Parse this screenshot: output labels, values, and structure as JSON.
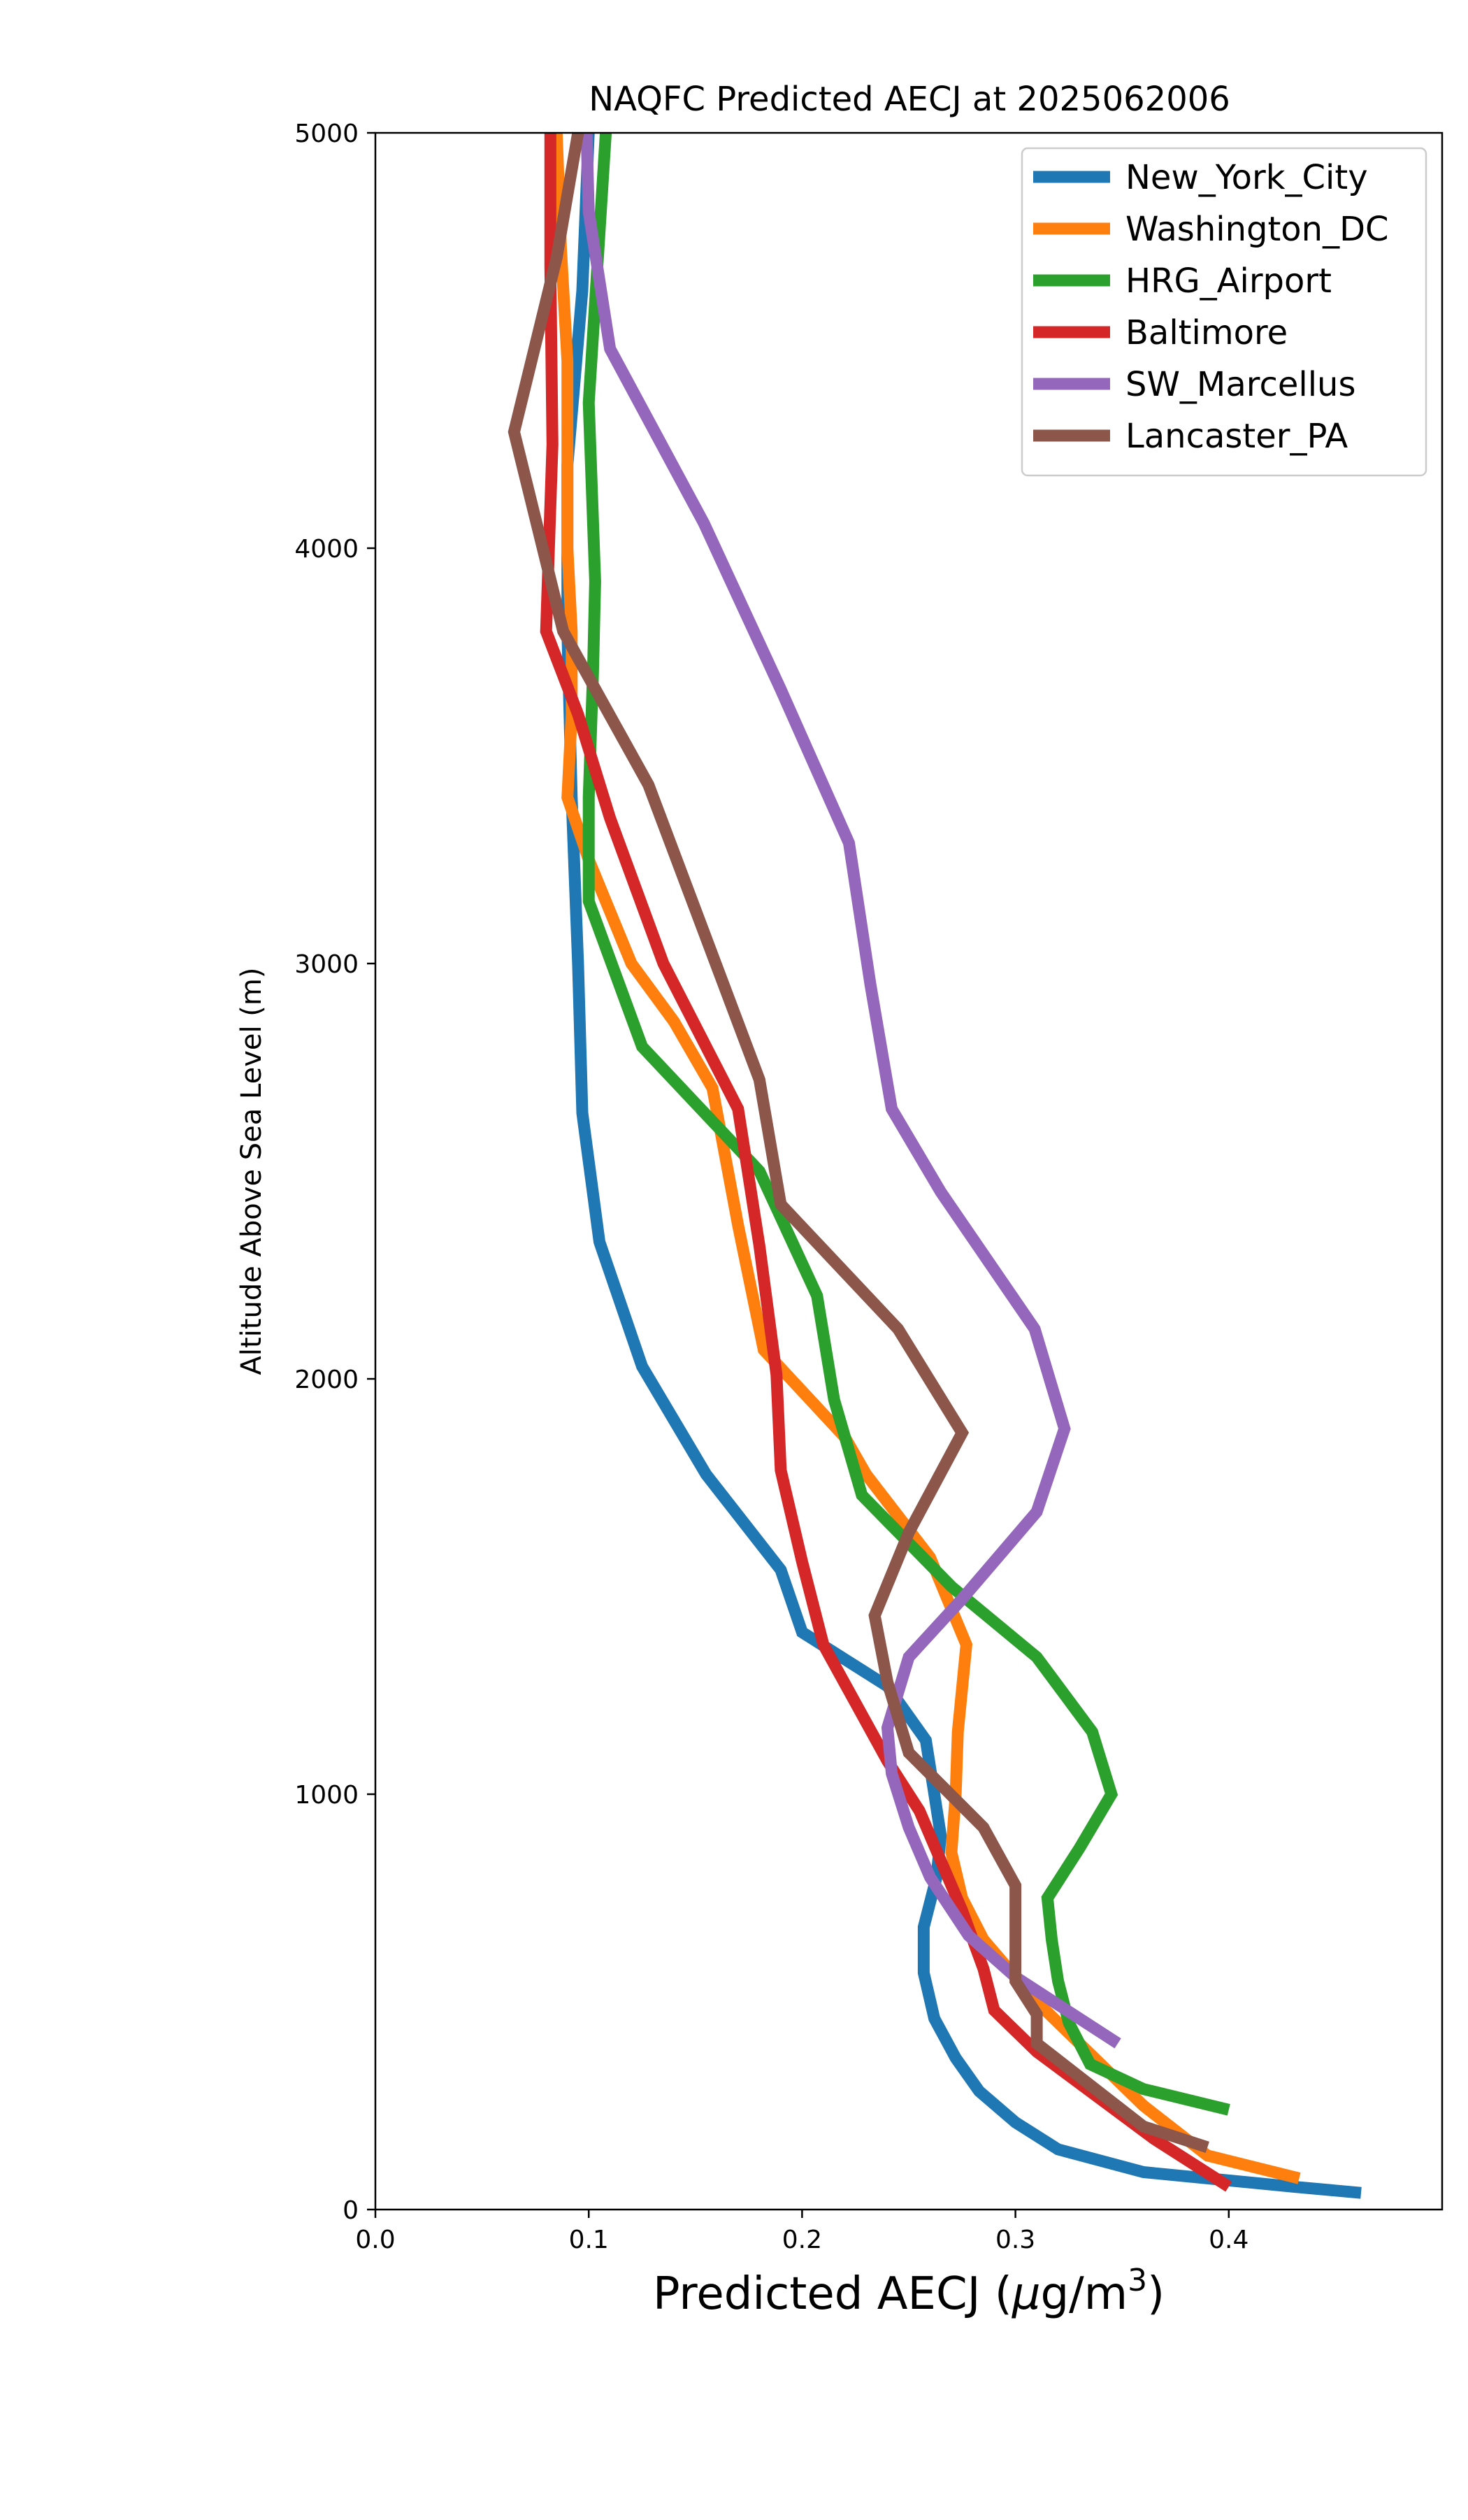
{
  "chart_data": {
    "type": "line",
    "title": "NAQFC Predicted AECJ at 2025062006",
    "xlabel": "Predicted AECJ (μg/m³)",
    "xlabel_main": "Predicted AECJ (",
    "xlabel_mu": "μ",
    "xlabel_unit": "g/m",
    "xlabel_sup": "3",
    "xlabel_close": ")",
    "ylabel": "Altitude Above Sea Level (m)",
    "xlim": [
      0.0,
      0.5
    ],
    "ylim": [
      0,
      5000
    ],
    "x_ticks": [
      0.0,
      0.1,
      0.2,
      0.3,
      0.4
    ],
    "x_tick_labels": [
      "0.0",
      "0.1",
      "0.2",
      "0.3",
      "0.4"
    ],
    "y_ticks": [
      0,
      1000,
      2000,
      3000,
      4000,
      5000
    ],
    "y_tick_labels": [
      "0",
      "1000",
      "2000",
      "3000",
      "4000",
      "5000"
    ],
    "grid": false,
    "legend_position": "top-right",
    "series": [
      {
        "name": "New_York_City",
        "color": "#1f77b4",
        "points": [
          [
            0.462,
            40
          ],
          [
            0.43,
            55
          ],
          [
            0.36,
            90
          ],
          [
            0.32,
            145
          ],
          [
            0.3,
            210
          ],
          [
            0.283,
            285
          ],
          [
            0.272,
            365
          ],
          [
            0.262,
            460
          ],
          [
            0.257,
            570
          ],
          [
            0.257,
            680
          ],
          [
            0.263,
            800
          ],
          [
            0.265,
            900
          ],
          [
            0.262,
            1000
          ],
          [
            0.258,
            1130
          ],
          [
            0.24,
            1260
          ],
          [
            0.2,
            1390
          ],
          [
            0.19,
            1540
          ],
          [
            0.155,
            1770
          ],
          [
            0.125,
            2030
          ],
          [
            0.105,
            2330
          ],
          [
            0.097,
            2640
          ],
          [
            0.095,
            3000
          ],
          [
            0.092,
            3400
          ],
          [
            0.09,
            3800
          ],
          [
            0.09,
            4200
          ],
          [
            0.097,
            4620
          ],
          [
            0.1,
            5000
          ]
        ]
      },
      {
        "name": "Washington_DC",
        "color": "#ff7f0e",
        "points": [
          [
            0.433,
            75
          ],
          [
            0.39,
            130
          ],
          [
            0.36,
            250
          ],
          [
            0.338,
            360
          ],
          [
            0.31,
            500
          ],
          [
            0.285,
            650
          ],
          [
            0.275,
            750
          ],
          [
            0.27,
            860
          ],
          [
            0.272,
            1000
          ],
          [
            0.273,
            1150
          ],
          [
            0.277,
            1360
          ],
          [
            0.26,
            1570
          ],
          [
            0.23,
            1770
          ],
          [
            0.22,
            1860
          ],
          [
            0.182,
            2070
          ],
          [
            0.17,
            2370
          ],
          [
            0.158,
            2700
          ],
          [
            0.14,
            2860
          ],
          [
            0.12,
            3000
          ],
          [
            0.1,
            3250
          ],
          [
            0.09,
            3400
          ],
          [
            0.092,
            3600
          ],
          [
            0.092,
            3800
          ],
          [
            0.09,
            4000
          ],
          [
            0.09,
            4200
          ],
          [
            0.09,
            4450
          ],
          [
            0.087,
            4720
          ],
          [
            0.085,
            5000
          ]
        ]
      },
      {
        "name": "HRG_Airport",
        "color": "#2ca02c",
        "points": [
          [
            0.4,
            240
          ],
          [
            0.36,
            290
          ],
          [
            0.335,
            350
          ],
          [
            0.325,
            450
          ],
          [
            0.32,
            550
          ],
          [
            0.317,
            650
          ],
          [
            0.315,
            750
          ],
          [
            0.33,
            870
          ],
          [
            0.345,
            1000
          ],
          [
            0.336,
            1150
          ],
          [
            0.31,
            1330
          ],
          [
            0.27,
            1500
          ],
          [
            0.228,
            1720
          ],
          [
            0.215,
            1950
          ],
          [
            0.207,
            2200
          ],
          [
            0.18,
            2500
          ],
          [
            0.125,
            2800
          ],
          [
            0.1,
            3150
          ],
          [
            0.1,
            3400
          ],
          [
            0.102,
            3700
          ],
          [
            0.103,
            3920
          ],
          [
            0.1,
            4350
          ],
          [
            0.108,
            5000
          ]
        ]
      },
      {
        "name": "Baltimore",
        "color": "#d62728",
        "points": [
          [
            0.4,
            55
          ],
          [
            0.365,
            170
          ],
          [
            0.31,
            380
          ],
          [
            0.29,
            480
          ],
          [
            0.285,
            580
          ],
          [
            0.275,
            720
          ],
          [
            0.265,
            840
          ],
          [
            0.255,
            960
          ],
          [
            0.24,
            1080
          ],
          [
            0.225,
            1220
          ],
          [
            0.21,
            1360
          ],
          [
            0.2,
            1560
          ],
          [
            0.19,
            1780
          ],
          [
            0.188,
            2010
          ],
          [
            0.18,
            2320
          ],
          [
            0.17,
            2650
          ],
          [
            0.135,
            3000
          ],
          [
            0.11,
            3350
          ],
          [
            0.095,
            3600
          ],
          [
            0.08,
            3800
          ],
          [
            0.083,
            4250
          ],
          [
            0.082,
            4680
          ],
          [
            0.082,
            5000
          ]
        ]
      },
      {
        "name": "SW_Marcellus",
        "color": "#9467bd",
        "points": [
          [
            0.348,
            400
          ],
          [
            0.3,
            560
          ],
          [
            0.278,
            660
          ],
          [
            0.26,
            800
          ],
          [
            0.25,
            920
          ],
          [
            0.242,
            1050
          ],
          [
            0.24,
            1160
          ],
          [
            0.25,
            1330
          ],
          [
            0.275,
            1470
          ],
          [
            0.31,
            1680
          ],
          [
            0.323,
            1880
          ],
          [
            0.309,
            2120
          ],
          [
            0.265,
            2450
          ],
          [
            0.242,
            2650
          ],
          [
            0.232,
            2950
          ],
          [
            0.222,
            3290
          ],
          [
            0.19,
            3660
          ],
          [
            0.154,
            4060
          ],
          [
            0.11,
            4480
          ],
          [
            0.1,
            4810
          ],
          [
            0.099,
            5000
          ]
        ]
      },
      {
        "name": "Lancaster_PA",
        "color": "#8c564b",
        "points": [
          [
            0.39,
            150
          ],
          [
            0.36,
            200
          ],
          [
            0.31,
            400
          ],
          [
            0.31,
            470
          ],
          [
            0.3,
            550
          ],
          [
            0.3,
            780
          ],
          [
            0.285,
            920
          ],
          [
            0.25,
            1100
          ],
          [
            0.24,
            1270
          ],
          [
            0.234,
            1430
          ],
          [
            0.25,
            1630
          ],
          [
            0.275,
            1870
          ],
          [
            0.245,
            2120
          ],
          [
            0.19,
            2420
          ],
          [
            0.18,
            2720
          ],
          [
            0.128,
            3430
          ],
          [
            0.088,
            3800
          ],
          [
            0.065,
            4280
          ],
          [
            0.085,
            4700
          ],
          [
            0.095,
            5000
          ]
        ]
      }
    ]
  }
}
